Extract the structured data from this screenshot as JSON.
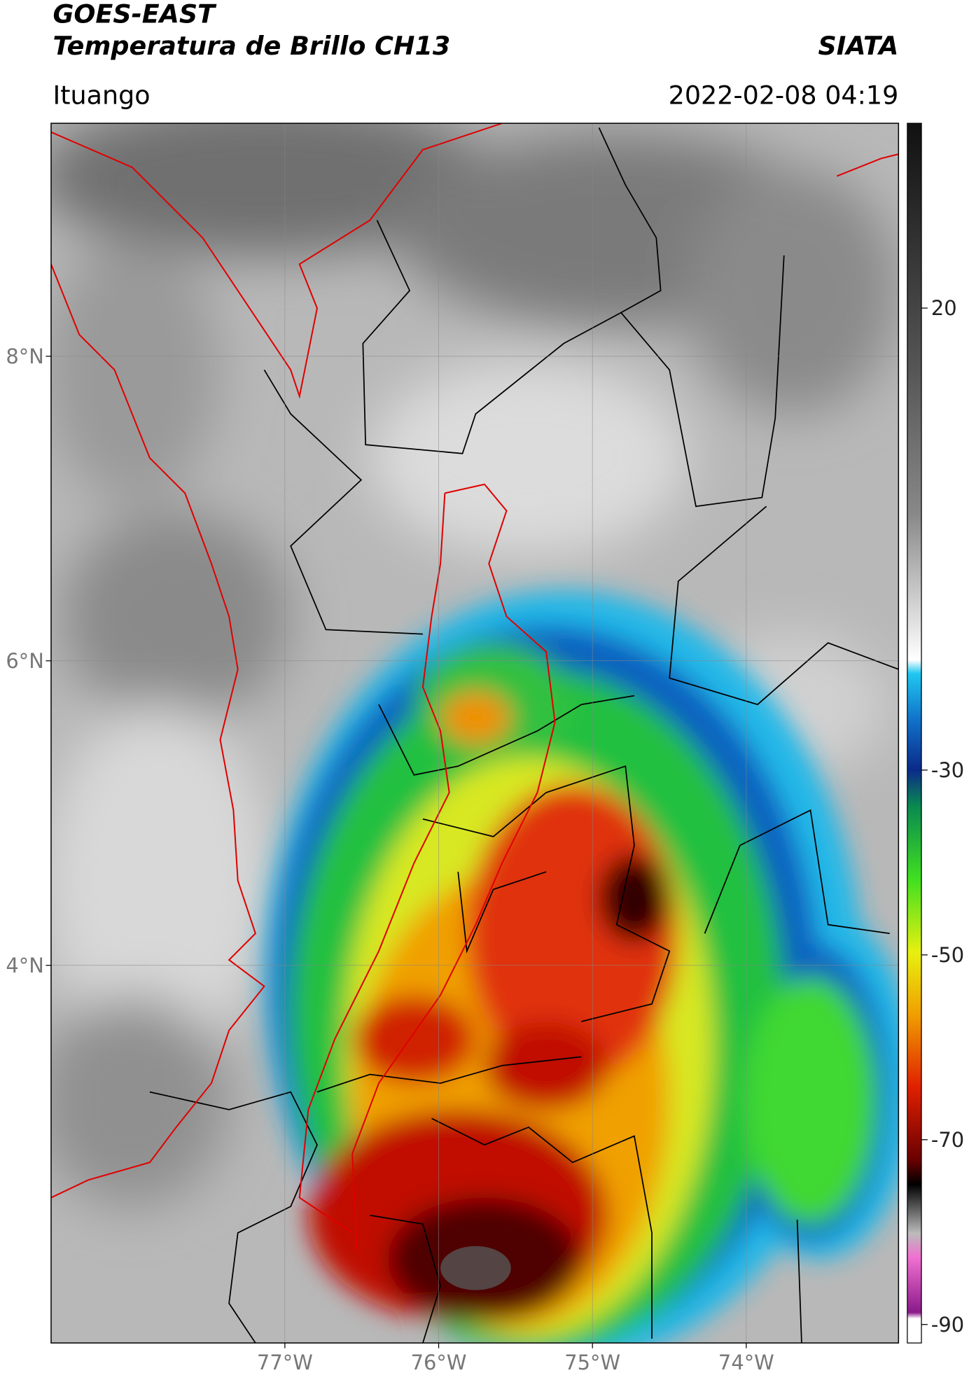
{
  "header": {
    "title": "GOES-EAST",
    "subtitle": "Temperatura de Brillo CH13",
    "org": "SIATA",
    "location": "Ituango",
    "datetime": "2022-02-08 04:19"
  },
  "map": {
    "xlim": [
      -78.52,
      -73.01
    ],
    "ylim": [
      1.52,
      9.53
    ],
    "xticks": [
      {
        "value": -77,
        "label": "77°W"
      },
      {
        "value": -76,
        "label": "76°W"
      },
      {
        "value": -75,
        "label": "75°W"
      },
      {
        "value": -74,
        "label": "74°W"
      }
    ],
    "yticks": [
      {
        "value": 8,
        "label": "8°N"
      },
      {
        "value": 6,
        "label": "6°N"
      },
      {
        "value": 4,
        "label": "4°N"
      }
    ],
    "grid": true
  },
  "colorbar": {
    "lim": [
      -92,
      40
    ],
    "ticks": [
      20,
      -30,
      -50,
      -70,
      -90
    ]
  }
}
